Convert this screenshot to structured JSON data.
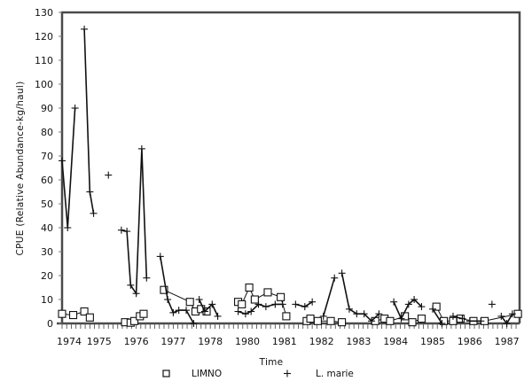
{
  "chart_data": {
    "type": "line",
    "title": "",
    "xlabel": "Time",
    "ylabel": "CPUE (Relative Abundance-kg/haul)",
    "ylim": [
      0,
      130
    ],
    "yticks": [
      0,
      10,
      20,
      30,
      40,
      50,
      60,
      70,
      80,
      90,
      100,
      110,
      120,
      130
    ],
    "xtick_labels": [
      "1974",
      "1975",
      "1976",
      "1977",
      "1978",
      "1980",
      "1981",
      "1982",
      "1983",
      "1984",
      "1985",
      "1986",
      "1987"
    ],
    "x_unit_note": "x values are in tick-slot units (0 = first label '1974', 12 = last label '1987')",
    "xlim": [
      0,
      12.3
    ],
    "grid": false,
    "legend_position": "bottom",
    "series": [
      {
        "name": "LIMNO",
        "marker": "square",
        "segments": [
          [
            [
              0.0,
              4
            ],
            [
              0.3,
              3.5
            ],
            [
              0.6,
              5
            ],
            [
              0.75,
              2.5
            ]
          ],
          [
            [
              1.7,
              0.5
            ],
            [
              1.85,
              0.3
            ],
            [
              1.95,
              1
            ],
            [
              2.1,
              3
            ],
            [
              2.2,
              4
            ]
          ],
          [
            [
              2.75,
              14
            ],
            [
              3.45,
              9
            ],
            [
              3.6,
              5
            ],
            [
              3.75,
              6
            ],
            [
              3.9,
              5
            ]
          ],
          [
            [
              4.75,
              9
            ],
            [
              4.85,
              8
            ],
            [
              5.05,
              15
            ],
            [
              5.2,
              10
            ],
            [
              5.55,
              13
            ],
            [
              5.9,
              11
            ],
            [
              6.05,
              3
            ]
          ],
          [
            [
              6.6,
              1
            ],
            [
              6.7,
              2
            ],
            [
              6.9,
              1
            ],
            [
              7.25,
              1
            ],
            [
              7.55,
              0.5
            ]
          ],
          [
            [
              8.45,
              1
            ],
            [
              8.7,
              2
            ],
            [
              8.85,
              1
            ],
            [
              9.25,
              3
            ],
            [
              9.45,
              0.5
            ],
            [
              9.7,
              2
            ]
          ],
          [
            [
              10.1,
              7
            ],
            [
              10.3,
              1
            ],
            [
              10.55,
              1
            ],
            [
              10.75,
              2
            ],
            [
              11.1,
              1
            ],
            [
              11.4,
              1
            ],
            [
              12.3,
              4
            ]
          ]
        ],
        "values_sampled": [
          4,
          3.5,
          5,
          2.5,
          0.5,
          0.3,
          1,
          3,
          4,
          14,
          9,
          5,
          6,
          5,
          9,
          8,
          15,
          10,
          13,
          11,
          3,
          1,
          2,
          1,
          1,
          0.5,
          1,
          2,
          1,
          3,
          0.5,
          2,
          7,
          1,
          1,
          2,
          1,
          1,
          4
        ]
      },
      {
        "name": "L. marie",
        "marker": "plus",
        "segments": [
          [
            [
              0.0,
              68
            ],
            [
              0.15,
              40
            ],
            [
              0.35,
              90
            ]
          ],
          [
            [
              0.6,
              123
            ],
            [
              0.75,
              55
            ],
            [
              0.85,
              46
            ]
          ],
          [
            [
              1.25,
              62
            ]
          ],
          [
            [
              1.6,
              39
            ],
            [
              1.75,
              38.5
            ],
            [
              1.85,
              16
            ],
            [
              2.0,
              12.5
            ],
            [
              2.15,
              73
            ],
            [
              2.28,
              19
            ]
          ],
          [
            [
              2.65,
              28
            ],
            [
              2.85,
              10
            ],
            [
              3.0,
              4.5
            ],
            [
              3.15,
              5.5
            ],
            [
              3.35,
              5.5
            ],
            [
              3.55,
              0
            ]
          ],
          [
            [
              3.7,
              10
            ],
            [
              3.85,
              5
            ],
            [
              4.05,
              8
            ],
            [
              4.2,
              3
            ]
          ],
          [
            [
              4.75,
              5
            ],
            [
              4.95,
              4
            ],
            [
              5.1,
              5
            ],
            [
              5.3,
              8
            ],
            [
              5.5,
              7
            ],
            [
              5.75,
              8
            ],
            [
              5.95,
              8
            ]
          ],
          [
            [
              6.3,
              8
            ],
            [
              6.55,
              7
            ],
            [
              6.75,
              9
            ]
          ],
          [
            [
              7.05,
              3
            ],
            [
              7.35,
              19
            ]
          ],
          [
            [
              7.55,
              21
            ],
            [
              7.75,
              6
            ],
            [
              7.95,
              4
            ],
            [
              8.15,
              4
            ],
            [
              8.35,
              1
            ],
            [
              8.55,
              4
            ]
          ],
          [
            [
              8.95,
              9
            ],
            [
              9.15,
              2
            ],
            [
              9.35,
              8
            ],
            [
              9.5,
              10
            ],
            [
              9.7,
              7
            ]
          ],
          [
            [
              10.0,
              6
            ],
            [
              10.25,
              0
            ]
          ],
          [
            [
              10.55,
              3
            ],
            [
              10.8,
              2
            ]
          ],
          [
            [
              11.0,
              1
            ],
            [
              11.3,
              1
            ]
          ],
          [
            [
              11.6,
              8
            ]
          ],
          [
            [
              11.85,
              3
            ],
            [
              12.0,
              0
            ],
            [
              12.15,
              4
            ]
          ]
        ],
        "values_sampled": [
          68,
          40,
          90,
          123,
          55,
          46,
          62,
          39,
          38.5,
          16,
          12.5,
          73,
          19,
          28,
          10,
          4.5,
          5.5,
          5.5,
          0,
          10,
          5,
          8,
          3,
          5,
          4,
          5,
          8,
          7,
          8,
          8,
          8,
          7,
          9,
          3,
          19,
          21,
          6,
          4,
          4,
          1,
          4,
          9,
          2,
          8,
          10,
          7,
          6,
          0,
          3,
          2,
          1,
          1,
          8,
          3,
          0,
          4
        ]
      }
    ]
  },
  "axes": {
    "x_title": "Time",
    "y_title": "CPUE (Relative Abundance-kg/haul)"
  },
  "legend": {
    "items": [
      {
        "label": "LIMNO",
        "symbol": "square"
      },
      {
        "label": "L. marie",
        "symbol": "plus"
      }
    ]
  },
  "colors": {
    "frame": "#4a4a4a",
    "series": "#111111",
    "background": "#ffffff"
  }
}
